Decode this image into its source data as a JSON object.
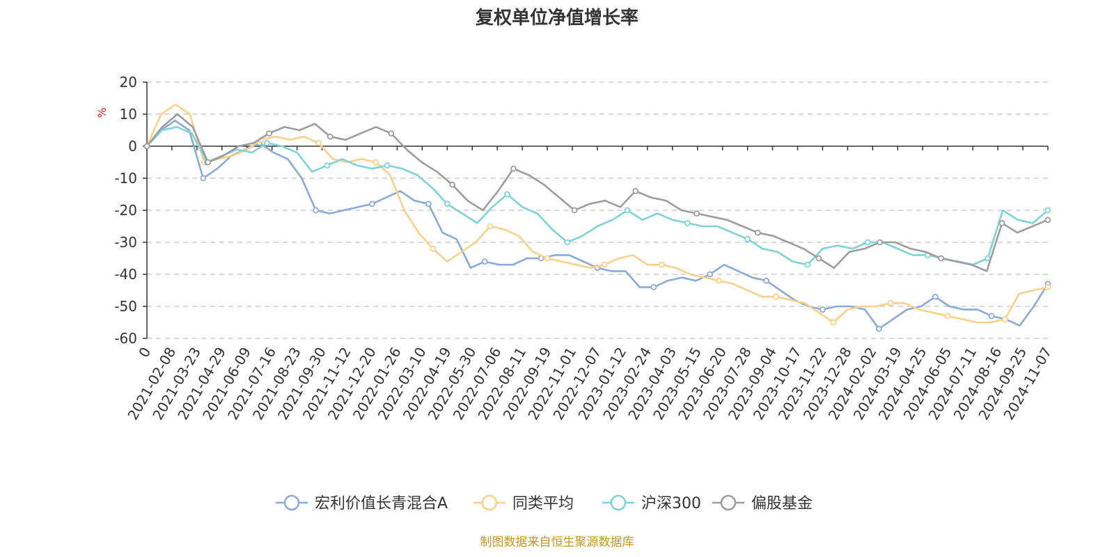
{
  "chart_data": {
    "type": "line",
    "title": "复权单位净值增长率",
    "y_unit": "%",
    "ylim": [
      -60,
      20
    ],
    "y_ticks": [
      "20",
      "10",
      "0",
      "-10",
      "-20",
      "-30",
      "-40",
      "-50",
      "-60"
    ],
    "x_ticks": [
      "0",
      "2021-02-08",
      "2021-03-23",
      "2021-04-29",
      "2021-06-09",
      "2021-07-16",
      "2021-08-23",
      "2021-09-30",
      "2021-11-12",
      "2021-12-20",
      "2022-01-26",
      "2022-03-10",
      "2022-04-19",
      "2022-05-30",
      "2022-07-06",
      "2022-08-11",
      "2022-09-19",
      "2022-11-01",
      "2022-12-07",
      "2023-01-12",
      "2023-02-24",
      "2023-04-03",
      "2023-05-15",
      "2023-06-20",
      "2023-07-28",
      "2023-09-04",
      "2023-10-17",
      "2023-11-22",
      "2023-12-28",
      "2024-02-02",
      "2024-03-19",
      "2024-04-25",
      "2024-06-05",
      "2024-07-11",
      "2024-08-16",
      "2024-09-25",
      "2024-11-07"
    ],
    "grid": true,
    "legend_position": "bottom",
    "source": "制图数据来自恒生聚源数据库",
    "series": [
      {
        "name": "宏利价值长青混合A",
        "color": "#8aaad8",
        "values": [
          0,
          5,
          8,
          5,
          -10,
          -7,
          -3,
          -1,
          1,
          -2,
          -4,
          -10,
          -20,
          -21,
          -20,
          -19,
          -18,
          -16,
          -14,
          -17,
          -18,
          -27,
          -29,
          -38,
          -36,
          -37,
          -37,
          -35,
          -35,
          -34,
          -34,
          -36,
          -38,
          -39,
          -39,
          -44,
          -44,
          -42,
          -41,
          -42,
          -40,
          -37,
          -39,
          -41,
          -42,
          -45,
          -48,
          -50,
          -51,
          -50,
          -50,
          -51,
          -57,
          -54,
          -51,
          -50,
          -47,
          -50,
          -51,
          -51,
          -53,
          -54,
          -56,
          -50,
          -43
        ]
      },
      {
        "name": "同类平均",
        "color": "#fdd08a",
        "values": [
          0,
          10,
          13,
          10,
          -5,
          -4,
          -3,
          -1,
          2,
          3,
          2,
          3,
          1,
          -4,
          -5,
          -4,
          -5,
          -9,
          -20,
          -27,
          -32,
          -36,
          -33,
          -30,
          -25,
          -26,
          -28,
          -33,
          -35,
          -36,
          -37,
          -38,
          -37,
          -35,
          -34,
          -37,
          -37,
          -38,
          -40,
          -41,
          -42,
          -43,
          -45,
          -47,
          -47,
          -48,
          -49,
          -52,
          -55,
          -51,
          -50,
          -50,
          -49,
          -49,
          -51,
          -52,
          -53,
          -54,
          -55,
          -55,
          -54,
          -46,
          -45,
          -44
        ]
      },
      {
        "name": "沪深300",
        "color": "#7ed3d6",
        "values": [
          0,
          5,
          6,
          4,
          -5,
          -3,
          -1,
          -2,
          1,
          0,
          -2,
          -8,
          -6,
          -4,
          -6,
          -7,
          -6,
          -7,
          -9,
          -13,
          -18,
          -21,
          -24,
          -19,
          -15,
          -19,
          -21,
          -26,
          -30,
          -28,
          -25,
          -23,
          -20,
          -23,
          -21,
          -23,
          -24,
          -25,
          -25,
          -27,
          -29,
          -32,
          -33,
          -36,
          -37,
          -32,
          -31,
          -32,
          -30,
          -30,
          -32,
          -34,
          -34,
          -35,
          -36,
          -37,
          -35,
          -20,
          -23,
          -24,
          -20
        ]
      },
      {
        "name": "偏股基金",
        "color": "#9d9d9d",
        "values": [
          0,
          6,
          10,
          6,
          -5,
          -3,
          0,
          1,
          4,
          6,
          5,
          7,
          3,
          2,
          4,
          6,
          4,
          -1,
          -5,
          -8,
          -12,
          -17,
          -20,
          -14,
          -7,
          -9,
          -12,
          -16,
          -20,
          -18,
          -17,
          -19,
          -14,
          -16,
          -17,
          -20,
          -21,
          -22,
          -23,
          -25,
          -27,
          -28,
          -30,
          -32,
          -35,
          -38,
          -33,
          -32,
          -30,
          -30,
          -32,
          -33,
          -35,
          -36,
          -37,
          -39,
          -24,
          -27,
          -25,
          -23
        ]
      }
    ]
  }
}
